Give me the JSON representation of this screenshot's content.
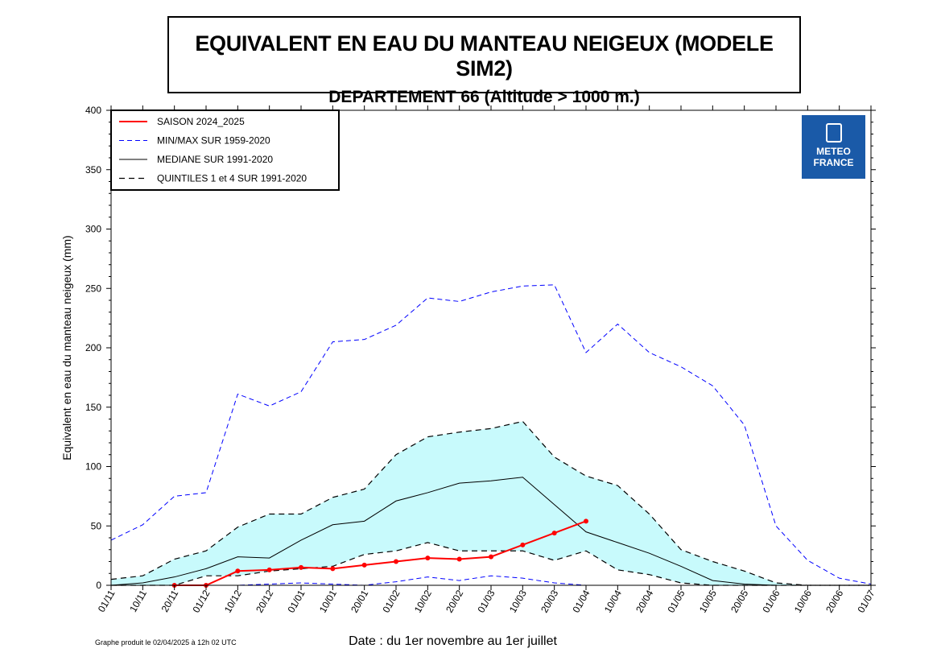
{
  "title": {
    "line1": "EQUIVALENT EN EAU DU MANTEAU NEIGEUX (MODELE SIM2)",
    "line2": "DEPARTEMENT 66  (Altitude > 1000 m.)"
  },
  "logo": {
    "line1": "METEO",
    "line2": "FRANCE"
  },
  "footer_note": "Graphe produit le 02/04/2025 à 12h 02 UTC",
  "chart_data": {
    "type": "line",
    "xlabel": "Date : du 1er novembre au 1er juillet",
    "ylabel": "Equivalent en eau du manteau neigeux (mm)",
    "ylim": [
      0,
      400
    ],
    "yticks": [
      0,
      50,
      100,
      150,
      200,
      250,
      300,
      350,
      400
    ],
    "grid": false,
    "legend_position": "top-left",
    "categories": [
      "01/11",
      "10/11",
      "20/11",
      "01/12",
      "10/12",
      "20/12",
      "01/01",
      "10/01",
      "20/01",
      "01/02",
      "10/02",
      "20/02",
      "01/03",
      "10/03",
      "20/03",
      "01/04",
      "10/04",
      "20/04",
      "01/05",
      "10/05",
      "20/05",
      "01/06",
      "10/06",
      "20/06",
      "01/07"
    ],
    "series": [
      {
        "name": "SAISON 2024_2025",
        "color": "#ff0000",
        "style": "solid-markers",
        "values": [
          null,
          null,
          0,
          0,
          12,
          13,
          15,
          14,
          17,
          20,
          23,
          22,
          24,
          34,
          44,
          54,
          null,
          null,
          null,
          null,
          null,
          null,
          null,
          null,
          null
        ]
      },
      {
        "name": "MIN/MAX SUR 1959-2020",
        "color": "#0000ff",
        "style": "dashed",
        "max": [
          38,
          51,
          75,
          78,
          161,
          151,
          163,
          205,
          207,
          219,
          242,
          239,
          247,
          252,
          253,
          196,
          220,
          196,
          184,
          168,
          135,
          50,
          21,
          6,
          1
        ],
        "min": [
          0,
          0,
          0,
          0,
          0,
          1,
          2,
          1,
          0,
          3,
          7,
          4,
          8,
          6,
          2,
          0,
          0,
          0,
          0,
          0,
          0,
          0,
          0,
          0,
          0
        ]
      },
      {
        "name": "MEDIANE SUR 1991-2020",
        "color": "#000000",
        "style": "solid",
        "values": [
          0,
          2,
          7,
          14,
          24,
          23,
          38,
          51,
          54,
          71,
          78,
          86,
          88,
          91,
          68,
          45,
          36,
          27,
          16,
          4,
          1,
          0,
          0,
          0,
          0
        ]
      },
      {
        "name": "QUINTILES 1 et 4 SUR 1991-2020",
        "color": "#000000",
        "style": "dashed",
        "fill": "#c8fafc",
        "q4": [
          5,
          8,
          22,
          29,
          49,
          60,
          60,
          74,
          81,
          110,
          125,
          129,
          132,
          138,
          108,
          92,
          84,
          60,
          30,
          20,
          12,
          2,
          0,
          0,
          0
        ],
        "q1": [
          0,
          0,
          0,
          8,
          8,
          12,
          14,
          16,
          26,
          29,
          36,
          29,
          29,
          29,
          21,
          29,
          13,
          9,
          2,
          0,
          0,
          0,
          0,
          0,
          0
        ]
      }
    ]
  }
}
